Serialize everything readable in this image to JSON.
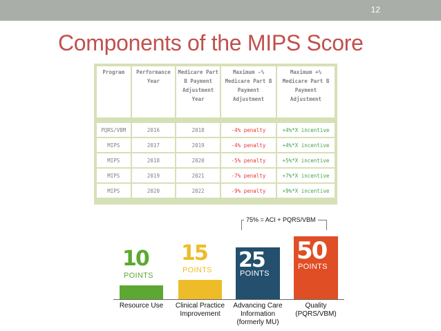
{
  "slide": {
    "number": "12",
    "title": "Components of the MIPS Score"
  },
  "table": {
    "headers": [
      "Program",
      "Performance Year",
      "Medicare Part B Payment Adjustment Year",
      "Maximum -% Medicare Part B Payment Adjustment",
      "Maximum +% Medicare Part B Payment Adjustment"
    ],
    "rows": [
      [
        "PQRS/VBM",
        "2016",
        "2018",
        "-4% penalty",
        "+4%*X incentive"
      ],
      [
        "MIPS",
        "2017",
        "2019",
        "-4% penalty",
        "+4%*X incentive"
      ],
      [
        "MIPS",
        "2018",
        "2020",
        "-5% penalty",
        "+5%*X incentive"
      ],
      [
        "MIPS",
        "2019",
        "2021",
        "-7% penalty",
        "+7%*X incentive"
      ],
      [
        "MIPS",
        "2020",
        "2022",
        "-9% penalty",
        "+9%*X incentive"
      ]
    ]
  },
  "score": {
    "bracket_label": "75% = ACI + PQRS/VBM",
    "components": [
      {
        "points": "10",
        "unit": "POINTS",
        "label": "Resource Use",
        "color": "#5da832",
        "value": 10
      },
      {
        "points": "15",
        "unit": "POINTS",
        "label": "Clinical Practice Improvement",
        "color": "#eebc29",
        "value": 15
      },
      {
        "points": "25",
        "unit": "POINTS",
        "label": "Advancing Care Information (formerly MU)",
        "color": "#24506e",
        "value": 25
      },
      {
        "points": "50",
        "unit": "POINTS",
        "label": "Quality (PQRS/VBM)",
        "color": "#e04e26",
        "value": 50
      }
    ]
  }
}
